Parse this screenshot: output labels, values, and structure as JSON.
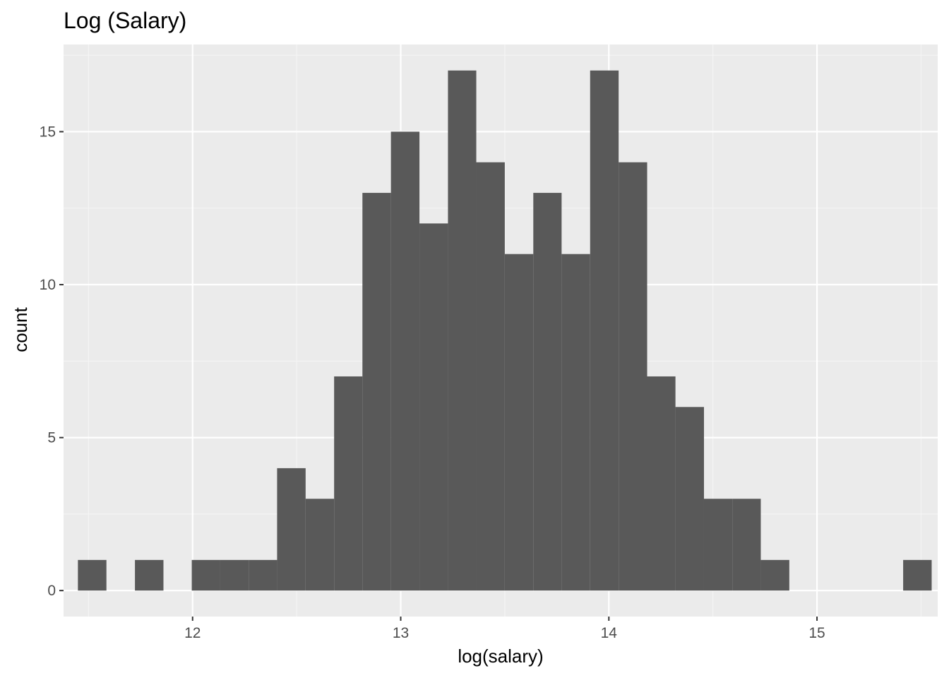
{
  "chart_data": {
    "type": "bar",
    "title": "Log (Salary)",
    "xlabel": "log(salary)",
    "ylabel": "count",
    "xlim": [
      11.38,
      15.58
    ],
    "ylim": [
      -0.85,
      17.85
    ],
    "x_ticks": [
      12,
      13,
      14,
      15
    ],
    "x_tick_labels": [
      "12",
      "13",
      "14",
      "15"
    ],
    "y_ticks": [
      0,
      5,
      10,
      15
    ],
    "y_tick_labels": [
      "0",
      "5",
      "10",
      "15"
    ],
    "bin_width": 0.1367,
    "bins": [
      {
        "x0": 11.449,
        "x1": 11.586,
        "count": 1
      },
      {
        "x0": 11.586,
        "x1": 11.723,
        "count": 0
      },
      {
        "x0": 11.723,
        "x1": 11.86,
        "count": 1
      },
      {
        "x0": 11.86,
        "x1": 11.996,
        "count": 0
      },
      {
        "x0": 11.996,
        "x1": 12.133,
        "count": 1
      },
      {
        "x0": 12.133,
        "x1": 12.27,
        "count": 1
      },
      {
        "x0": 12.27,
        "x1": 12.406,
        "count": 1
      },
      {
        "x0": 12.406,
        "x1": 12.543,
        "count": 4
      },
      {
        "x0": 12.543,
        "x1": 12.68,
        "count": 3
      },
      {
        "x0": 12.68,
        "x1": 12.816,
        "count": 7
      },
      {
        "x0": 12.816,
        "x1": 12.953,
        "count": 13
      },
      {
        "x0": 12.953,
        "x1": 13.09,
        "count": 15
      },
      {
        "x0": 13.09,
        "x1": 13.227,
        "count": 12
      },
      {
        "x0": 13.227,
        "x1": 13.363,
        "count": 17
      },
      {
        "x0": 13.363,
        "x1": 13.5,
        "count": 14
      },
      {
        "x0": 13.5,
        "x1": 13.637,
        "count": 11
      },
      {
        "x0": 13.637,
        "x1": 13.773,
        "count": 13
      },
      {
        "x0": 13.773,
        "x1": 13.91,
        "count": 11
      },
      {
        "x0": 13.91,
        "x1": 14.047,
        "count": 17
      },
      {
        "x0": 14.047,
        "x1": 14.184,
        "count": 14
      },
      {
        "x0": 14.184,
        "x1": 14.32,
        "count": 7
      },
      {
        "x0": 14.32,
        "x1": 14.457,
        "count": 6
      },
      {
        "x0": 14.457,
        "x1": 14.594,
        "count": 3
      },
      {
        "x0": 14.594,
        "x1": 14.73,
        "count": 3
      },
      {
        "x0": 14.73,
        "x1": 14.867,
        "count": 1
      },
      {
        "x0": 14.867,
        "x1": 15.004,
        "count": 0
      },
      {
        "x0": 15.004,
        "x1": 15.14,
        "count": 0
      },
      {
        "x0": 15.14,
        "x1": 15.277,
        "count": 0
      },
      {
        "x0": 15.277,
        "x1": 15.414,
        "count": 0
      },
      {
        "x0": 15.414,
        "x1": 15.551,
        "count": 1
      }
    ],
    "grid": true,
    "legend": "none",
    "colors": {
      "panel_background": "#ebebeb",
      "grid_major": "#ffffff",
      "grid_minor": "#f5f5f5",
      "bar_fill": "#595959",
      "tick_text": "#4d4d4d",
      "tick_mark": "#333333"
    }
  }
}
